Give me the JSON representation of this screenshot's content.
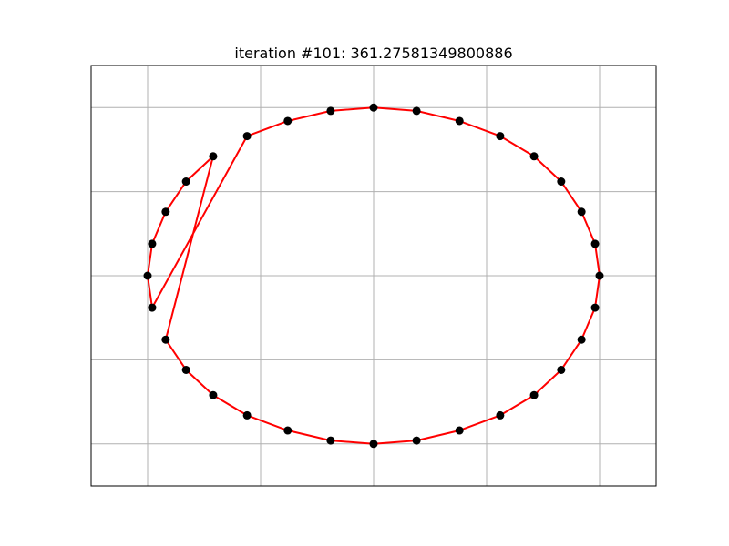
{
  "chart_data": {
    "type": "scatter",
    "title": "iteration #101: 361.27581349800886",
    "xlabel": "",
    "ylabel": "",
    "xlim": [
      -1.25,
      1.25
    ],
    "ylim": [
      -1.25,
      1.25
    ],
    "grid": true,
    "xticks": [
      -1.0,
      -0.5,
      0.0,
      0.5,
      1.0
    ],
    "yticks": [
      -1.0,
      -0.5,
      0.0,
      0.5,
      1.0
    ],
    "points": [
      [
        1.0,
        0.0
      ],
      [
        0.98,
        0.19
      ],
      [
        0.92,
        0.38
      ],
      [
        0.83,
        0.56
      ],
      [
        0.71,
        0.71
      ],
      [
        0.56,
        0.83
      ],
      [
        0.38,
        0.92
      ],
      [
        0.19,
        0.98
      ],
      [
        0.0,
        1.0
      ],
      [
        -0.19,
        0.98
      ],
      [
        -0.38,
        0.92
      ],
      [
        -0.56,
        0.83
      ],
      [
        -0.71,
        0.71
      ],
      [
        -0.83,
        0.56
      ],
      [
        -0.92,
        0.38
      ],
      [
        -0.98,
        0.19
      ],
      [
        -1.0,
        0.0
      ],
      [
        -0.98,
        -0.19
      ],
      [
        -0.92,
        -0.38
      ],
      [
        -0.83,
        -0.56
      ],
      [
        -0.71,
        -0.71
      ],
      [
        -0.56,
        -0.83
      ],
      [
        -0.38,
        -0.92
      ],
      [
        -0.19,
        -0.98
      ],
      [
        0.0,
        -1.0
      ],
      [
        0.19,
        -0.98
      ],
      [
        0.38,
        -0.92
      ],
      [
        0.56,
        -0.83
      ],
      [
        0.71,
        -0.71
      ],
      [
        0.83,
        -0.56
      ],
      [
        0.92,
        -0.38
      ],
      [
        0.98,
        -0.19
      ]
    ],
    "path_order": [
      8,
      7,
      6,
      5,
      4,
      3,
      2,
      1,
      0,
      31,
      30,
      29,
      28,
      27,
      26,
      25,
      24,
      23,
      22,
      21,
      20,
      19,
      18,
      12,
      13,
      14,
      15,
      16,
      17,
      11,
      10,
      9,
      8
    ],
    "point_color": "#000000",
    "line_color": "#ff0000",
    "grid_color": "#b0b0b0"
  }
}
